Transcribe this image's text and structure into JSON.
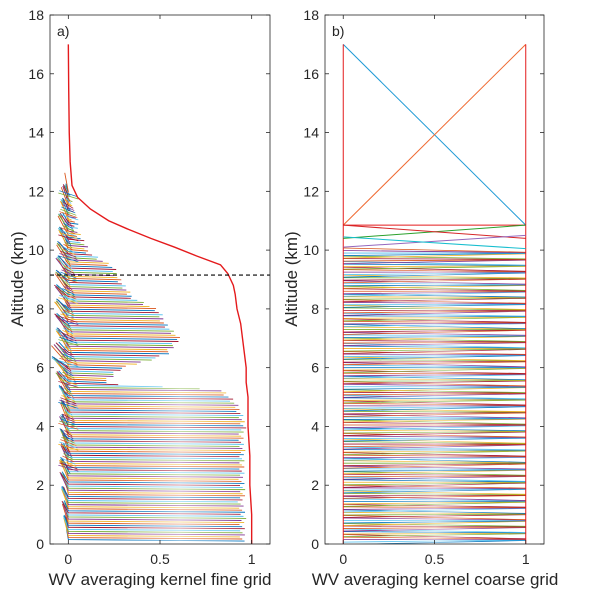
{
  "figure": {
    "panels": [
      {
        "label": "a)"
      },
      {
        "label": "b)"
      }
    ]
  },
  "chart_data": [
    {
      "type": "line",
      "panel_label": "a)",
      "xlabel": "WV averaging kernel fine grid",
      "ylabel": "Altitude (km)",
      "xlim": [
        -0.1,
        1.1
      ],
      "ylim": [
        0,
        18
      ],
      "xticks": [
        0,
        0.5,
        1
      ],
      "xtick_labels": [
        "0",
        "0.5",
        "1"
      ],
      "yticks": [
        0,
        2,
        4,
        6,
        8,
        10,
        12,
        14,
        16,
        18
      ],
      "ytick_labels": [
        "0",
        "2",
        "4",
        "6",
        "8",
        "10",
        "12",
        "14",
        "16",
        "18"
      ],
      "grid": false,
      "kernel_envelope": {
        "description_altitude_km": [
          0.1,
          0.5,
          1,
          1.5,
          2,
          2.5,
          3,
          3.5,
          4,
          4.5,
          5,
          5.3,
          5.5,
          6,
          6.5,
          7,
          7.5,
          8,
          8.5,
          9,
          9.5,
          10,
          10.5,
          11,
          11.5,
          12
        ],
        "max_value": [
          0.96,
          0.97,
          0.97,
          0.96,
          0.97,
          0.96,
          0.97,
          0.96,
          0.97,
          0.96,
          0.9,
          0.85,
          0.2,
          0.3,
          0.55,
          0.62,
          0.55,
          0.5,
          0.35,
          0.3,
          0.25,
          0.12,
          0.08,
          0.05,
          0.03,
          0.01
        ],
        "min_value": [
          -0.01,
          -0.01,
          -0.02,
          -0.02,
          -0.03,
          -0.03,
          -0.02,
          -0.03,
          -0.03,
          -0.02,
          -0.04,
          -0.05,
          -0.05,
          -0.08,
          -0.05,
          -0.05,
          -0.06,
          -0.05,
          -0.06,
          -0.05,
          -0.05,
          -0.04,
          -0.04,
          -0.03,
          -0.02,
          -0.01
        ]
      },
      "series": [
        {
          "color": "#e41a1c",
          "x": [
            1.0,
            1.0,
            0.99,
            0.99,
            0.98,
            0.98,
            0.98,
            0.97,
            0.97,
            0.96,
            0.95,
            0.94,
            0.92,
            0.91,
            0.9,
            0.87,
            0.83,
            0.7,
            0.58,
            0.45,
            0.33,
            0.22,
            0.12,
            0.05,
            0.02,
            0.01,
            0.005,
            0.002,
            0.0
          ],
          "y": [
            0.0,
            1.0,
            2.0,
            3.0,
            4.0,
            4.7,
            5.0,
            5.5,
            6.0,
            6.5,
            7.0,
            7.5,
            8.0,
            8.5,
            8.8,
            9.2,
            9.5,
            9.8,
            10.1,
            10.4,
            10.7,
            11.0,
            11.4,
            11.8,
            12.2,
            13.0,
            14.0,
            15.5,
            17.0
          ]
        }
      ],
      "annotations": [
        {
          "type": "hline",
          "y": 9.15,
          "style": "dashed",
          "color": "#000000"
        }
      ]
    },
    {
      "type": "line",
      "panel_label": "b)",
      "xlabel": "WV averaging kernel coarse grid",
      "ylabel": "Altitude (km)",
      "xlim": [
        -0.1,
        1.1
      ],
      "ylim": [
        0,
        18
      ],
      "xticks": [
        0,
        0.5,
        1
      ],
      "xtick_labels": [
        "0",
        "0.5",
        "1"
      ],
      "yticks": [
        0,
        2,
        4,
        6,
        8,
        10,
        12,
        14,
        16,
        18
      ],
      "ytick_labels": [
        "0",
        "2",
        "4",
        "6",
        "8",
        "10",
        "12",
        "14",
        "16",
        "18"
      ],
      "grid": false,
      "series": [
        {
          "color": "#1f9ad6",
          "x": [
            0,
            1
          ],
          "y": [
            17,
            10.85
          ]
        },
        {
          "color": "#ef6a32",
          "x": [
            0,
            1
          ],
          "y": [
            10.85,
            17
          ]
        },
        {
          "color": "#e41a1c",
          "x": [
            0,
            0
          ],
          "y": [
            0,
            17
          ]
        },
        {
          "color": "#e41a1c",
          "x": [
            1,
            1
          ],
          "y": [
            0,
            17
          ]
        },
        {
          "color": "#e41a1c",
          "x": [
            0,
            1
          ],
          "y": [
            10.85,
            10.85
          ]
        },
        {
          "color": "#2ca02c",
          "x": [
            0,
            1
          ],
          "y": [
            10.4,
            10.85
          ]
        },
        {
          "color": "#d62728",
          "x": [
            0,
            1
          ],
          "y": [
            10.85,
            10.4
          ]
        },
        {
          "color": "#9467bd",
          "x": [
            0,
            1
          ],
          "y": [
            10.1,
            10.5
          ]
        },
        {
          "color": "#17becf",
          "x": [
            0,
            1
          ],
          "y": [
            10.45,
            10.05
          ]
        }
      ]
    }
  ],
  "palette": [
    "#0072bd",
    "#d95319",
    "#edb120",
    "#7e2f8e",
    "#77ac30",
    "#4dbeee",
    "#a2142f"
  ]
}
